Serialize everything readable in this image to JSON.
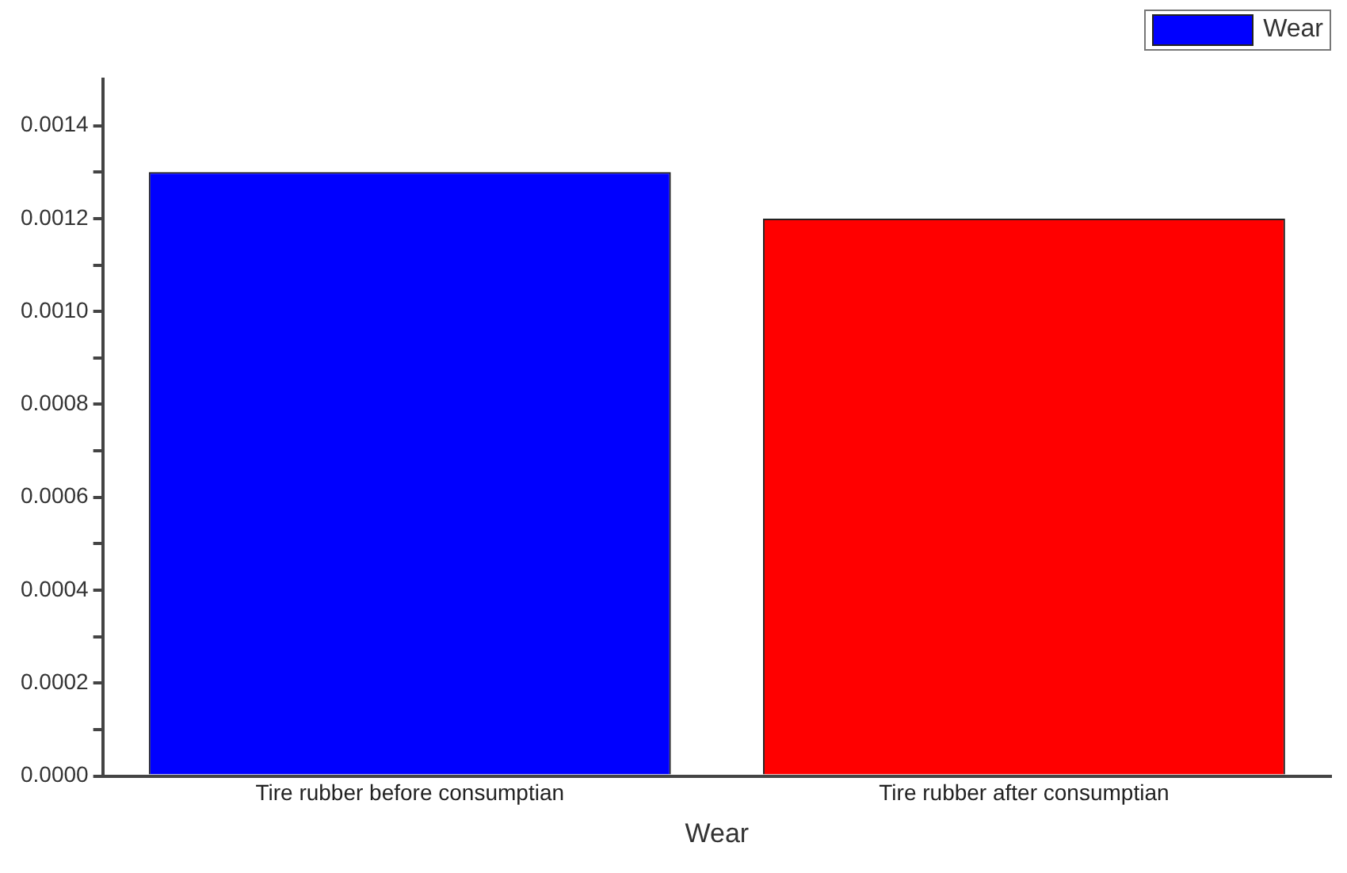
{
  "chart_data": {
    "type": "bar",
    "xlabel": "Wear",
    "categories": [
      "Tire rubber before consumptian",
      "Tire rubber after consumptian"
    ],
    "series": [
      {
        "name": "Wear",
        "color": "#0000ff",
        "colors": [
          "#0000ff",
          "#ff0000"
        ],
        "values": [
          0.0013,
          0.0012
        ]
      }
    ],
    "ylim": [
      0,
      0.0015
    ],
    "yticks": [
      {
        "value": 0,
        "label": "0.0000"
      },
      {
        "value": 0.0001,
        "label": null
      },
      {
        "value": 0.0002,
        "label": "0.0002"
      },
      {
        "value": 0.0003,
        "label": null
      },
      {
        "value": 0.0004,
        "label": "0.0004"
      },
      {
        "value": 0.0005,
        "label": null
      },
      {
        "value": 0.0006,
        "label": "0.0006"
      },
      {
        "value": 0.0007,
        "label": null
      },
      {
        "value": 0.0008,
        "label": "0.0008"
      },
      {
        "value": 0.0009,
        "label": null
      },
      {
        "value": 0.001,
        "label": "0.0010"
      },
      {
        "value": 0.0011,
        "label": null
      },
      {
        "value": 0.0012,
        "label": "0.0012"
      },
      {
        "value": 0.0013,
        "label": null
      },
      {
        "value": 0.0014,
        "label": "0.0014"
      }
    ],
    "grid": false,
    "legend": "top right"
  }
}
